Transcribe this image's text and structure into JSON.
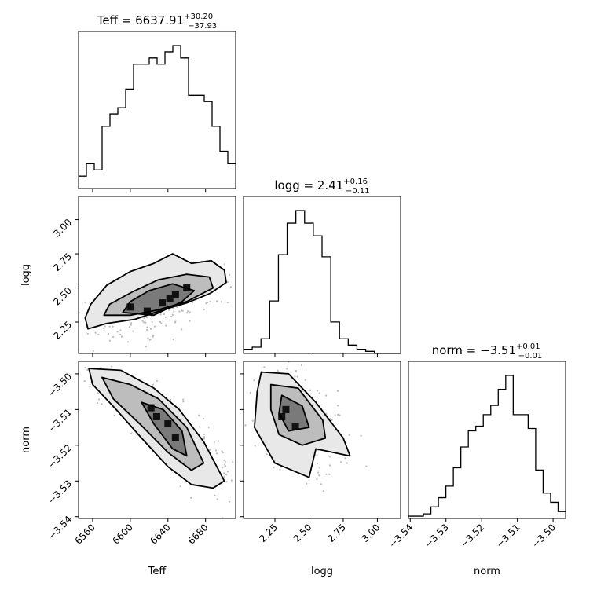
{
  "chart_data": {
    "type": "corner",
    "parameters": [
      "Teff",
      "logg",
      "norm"
    ],
    "titles": {
      "Teff": {
        "name": "Teff",
        "median": "6637.91",
        "plus": "+30.20",
        "minus": "−37.93"
      },
      "logg": {
        "name": "logg",
        "median": "2.41",
        "plus": "+0.16",
        "minus": "−0.11"
      },
      "norm": {
        "name": "norm",
        "median": "−3.51",
        "plus": "+0.01",
        "minus": "−0.01"
      }
    },
    "ranges": {
      "Teff": [
        6545,
        6712
      ],
      "logg": [
        2.02,
        3.17
      ],
      "norm": [
        -3.5405,
        -3.4965
      ]
    },
    "ticks": {
      "Teff": [
        6560,
        6600,
        6640,
        6680
      ],
      "logg": [
        2.25,
        2.5,
        2.75,
        3.0
      ],
      "norm": [
        -3.54,
        -3.53,
        -3.52,
        -3.51,
        -3.5
      ]
    },
    "tick_labels": {
      "Teff": [
        "6560",
        "6600",
        "6640",
        "6680"
      ],
      "logg_x": [
        "2.25",
        "2.50",
        "2.75",
        "3.00"
      ],
      "logg_y": [
        "2.25",
        "2.50",
        "2.75",
        "3.00"
      ],
      "norm_x": [
        "−3.54",
        "−3.53",
        "−3.52",
        "−3.51",
        "−3.50"
      ],
      "norm_y": [
        "−3.54",
        "−3.53",
        "−3.52",
        "−3.51",
        "−3.50"
      ]
    },
    "histograms": {
      "Teff": [
        2,
        4,
        3,
        10,
        12,
        13,
        16,
        20,
        20,
        21,
        20,
        22,
        23,
        21,
        15,
        15,
        14,
        10,
        6,
        4
      ],
      "logg": [
        2,
        3,
        7,
        25,
        47,
        62,
        68,
        62,
        56,
        46,
        15,
        7,
        4,
        2,
        1,
        0,
        0,
        0
      ],
      "norm": [
        1,
        1,
        2,
        5,
        9,
        14,
        22,
        31,
        38,
        40,
        45,
        49,
        56,
        62,
        45,
        45,
        39,
        21,
        11,
        7,
        3
      ]
    },
    "hist_ranges": {
      "Teff": [
        6545,
        6712
      ],
      "logg": [
        2.02,
        3.17
      ],
      "norm": [
        -3.5405,
        -3.4965
      ]
    },
    "scatter": {
      "Teff_logg": {
        "center": [
          6630,
          2.38
        ],
        "sd": [
          30,
          0.12
        ],
        "rho": 0.65
      },
      "Teff_norm": {
        "center": [
          6633,
          -3.514
        ],
        "sd": [
          34,
          0.0072
        ],
        "rho": -0.88
      },
      "logg_norm": {
        "center": [
          2.42,
          -3.512
        ],
        "sd": [
          0.12,
          0.0072
        ],
        "rho": -0.45
      }
    },
    "contours": {
      "Teff_logg": [
        [
          [
            6555,
            2.2
          ],
          [
            6575,
            2.24
          ],
          [
            6605,
            2.27
          ],
          [
            6635,
            2.34
          ],
          [
            6660,
            2.39
          ],
          [
            6685,
            2.46
          ],
          [
            6702,
            2.54
          ],
          [
            6700,
            2.63
          ],
          [
            6686,
            2.7
          ],
          [
            6665,
            2.68
          ],
          [
            6645,
            2.75
          ],
          [
            6625,
            2.68
          ],
          [
            6600,
            2.62
          ],
          [
            6575,
            2.52
          ],
          [
            6558,
            2.38
          ],
          [
            6552,
            2.28
          ]
        ],
        [
          [
            6572,
            2.3
          ],
          [
            6600,
            2.3
          ],
          [
            6630,
            2.34
          ],
          [
            6660,
            2.4
          ],
          [
            6688,
            2.5
          ],
          [
            6684,
            2.58
          ],
          [
            6660,
            2.6
          ],
          [
            6630,
            2.56
          ],
          [
            6602,
            2.47
          ],
          [
            6578,
            2.38
          ]
        ],
        [
          [
            6592,
            2.32
          ],
          [
            6625,
            2.3
          ],
          [
            6655,
            2.4
          ],
          [
            6668,
            2.48
          ],
          [
            6645,
            2.53
          ],
          [
            6620,
            2.48
          ],
          [
            6600,
            2.4
          ]
        ]
      ],
      "Teff_norm": [
        [
          [
            6556,
            -3.4985
          ],
          [
            6590,
            -3.499
          ],
          [
            6625,
            -3.504
          ],
          [
            6652,
            -3.51
          ],
          [
            6678,
            -3.519
          ],
          [
            6700,
            -3.53
          ],
          [
            6688,
            -3.532
          ],
          [
            6665,
            -3.531
          ],
          [
            6640,
            -3.526
          ],
          [
            6612,
            -3.518
          ],
          [
            6585,
            -3.51
          ],
          [
            6560,
            -3.503
          ]
        ],
        [
          [
            6570,
            -3.501
          ],
          [
            6600,
            -3.503
          ],
          [
            6630,
            -3.507
          ],
          [
            6660,
            -3.515
          ],
          [
            6678,
            -3.525
          ],
          [
            6665,
            -3.527
          ],
          [
            6640,
            -3.522
          ],
          [
            6610,
            -3.514
          ],
          [
            6582,
            -3.507
          ]
        ],
        [
          [
            6612,
            -3.508
          ],
          [
            6635,
            -3.51
          ],
          [
            6655,
            -3.516
          ],
          [
            6660,
            -3.523
          ],
          [
            6645,
            -3.521
          ],
          [
            6625,
            -3.514
          ]
        ]
      ],
      "logg_norm": [
        [
          [
            2.15,
            -3.4995
          ],
          [
            2.35,
            -3.5
          ],
          [
            2.55,
            -3.508
          ],
          [
            2.75,
            -3.518
          ],
          [
            2.8,
            -3.523
          ],
          [
            2.55,
            -3.521
          ],
          [
            2.5,
            -3.529
          ],
          [
            2.25,
            -3.525
          ],
          [
            2.1,
            -3.515
          ],
          [
            2.12,
            -3.505
          ]
        ],
        [
          [
            2.22,
            -3.503
          ],
          [
            2.42,
            -3.504
          ],
          [
            2.6,
            -3.513
          ],
          [
            2.62,
            -3.518
          ],
          [
            2.45,
            -3.52
          ],
          [
            2.28,
            -3.517
          ],
          [
            2.22,
            -3.51
          ]
        ],
        [
          [
            2.3,
            -3.506
          ],
          [
            2.45,
            -3.509
          ],
          [
            2.5,
            -3.515
          ],
          [
            2.35,
            -3.516
          ],
          [
            2.28,
            -3.511
          ]
        ]
      ]
    },
    "dense_blocks": {
      "Teff_logg": [
        [
          6618,
          2.33
        ],
        [
          6634,
          2.39
        ],
        [
          6648,
          2.45
        ],
        [
          6660,
          2.5
        ],
        [
          6600,
          2.36
        ],
        [
          6642,
          2.42
        ]
      ],
      "Teff_norm": [
        [
          6622,
          -3.5095
        ],
        [
          6648,
          -3.5178
        ],
        [
          6628,
          -3.512
        ],
        [
          6640,
          -3.514
        ]
      ],
      "logg_norm": [
        [
          2.33,
          -3.51
        ],
        [
          2.4,
          -3.5148
        ],
        [
          2.3,
          -3.512
        ]
      ]
    }
  }
}
